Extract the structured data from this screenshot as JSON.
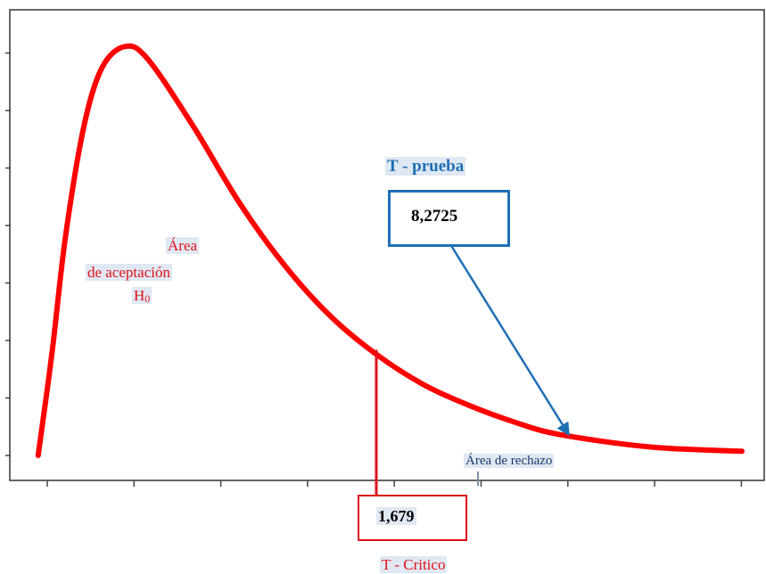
{
  "chart_data": {
    "type": "line",
    "title": "",
    "xlabel": "",
    "ylabel": "",
    "series": [
      {
        "curve": "t-distribution-density",
        "x": [
          0.3,
          0.45,
          0.6,
          0.8,
          1.0,
          1.25,
          1.5,
          2.0,
          2.5,
          3.0,
          3.5,
          4.0,
          4.5,
          5.0,
          5.5,
          6.0,
          7.0,
          8.0
        ],
        "y": [
          0.0,
          0.24,
          0.52,
          0.78,
          0.92,
          0.97,
          0.94,
          0.78,
          0.6,
          0.45,
          0.33,
          0.24,
          0.17,
          0.12,
          0.08,
          0.05,
          0.02,
          0.01
        ],
        "color": "#ff0000"
      }
    ],
    "color": "#ff0000",
    "ylim": [
      0,
      1
    ],
    "xlim": [
      0,
      8
    ],
    "annotations": {
      "acceptance": {
        "line1": "Área",
        "line2": "de aceptación",
        "line3": "H",
        "line3_sub": "0",
        "color": "#e0101a"
      },
      "rejection": {
        "text": "Área de rechazo",
        "color": "#1a3a6a"
      },
      "t_critico": {
        "label": "T - Critico",
        "value": "1,679",
        "x": 4.0,
        "color": "#e0101a"
      },
      "t_prueba": {
        "label": "T - prueba",
        "value": "8,2725",
        "arrow_to_x": 6.1,
        "color": "#1f6fb5"
      }
    }
  }
}
